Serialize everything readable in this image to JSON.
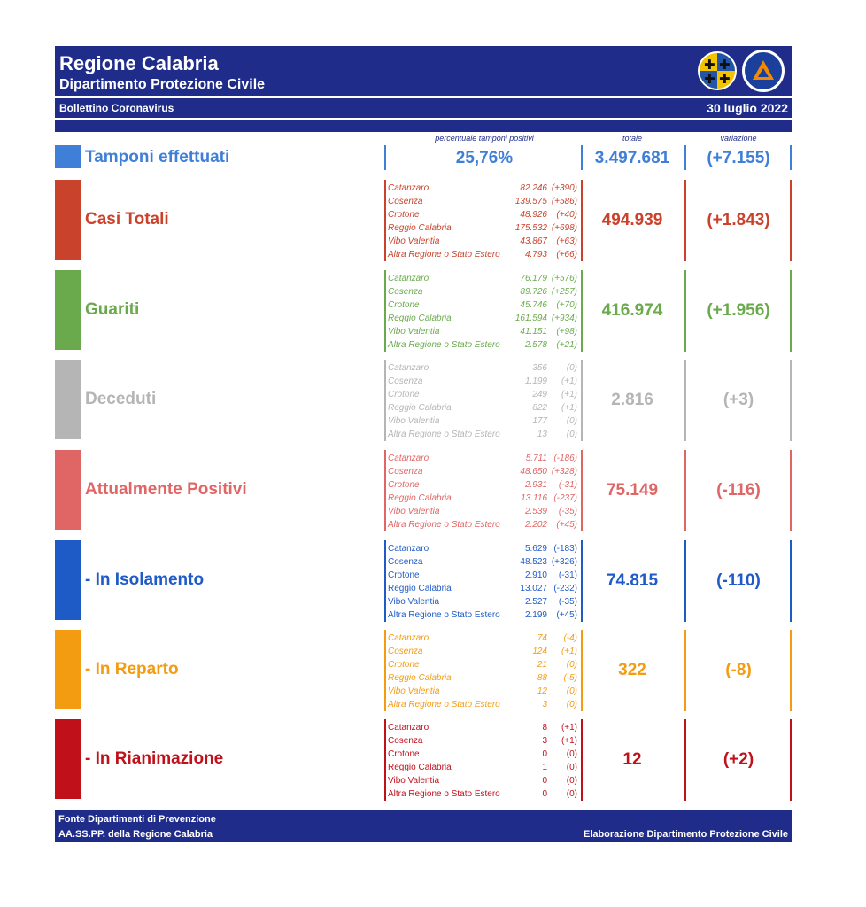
{
  "header": {
    "title": "Regione Calabria",
    "subtitle": "Dipartimento Protezione Civile",
    "bulletin": "Bollettino Coronavirus",
    "date": "30 luglio 2022"
  },
  "columns": {
    "pct_label": "percentuale tamponi positivi",
    "total_label": "totale",
    "var_label": "variazione"
  },
  "tamponi": {
    "label": "Tamponi effettuati",
    "pct": "25,76%",
    "total": "3.497.681",
    "variation": "(+7.155)",
    "color": "#3f7fd8"
  },
  "rows": [
    {
      "label": "Casi Totali",
      "total": "494.939",
      "variation": "(+1.843)",
      "color": "#c9432c",
      "provinces": [
        {
          "name": "Catanzaro",
          "value": "82.246",
          "delta": "(+390)"
        },
        {
          "name": "Cosenza",
          "value": "139.575",
          "delta": "(+586)"
        },
        {
          "name": "Crotone",
          "value": "48.926",
          "delta": "(+40)"
        },
        {
          "name": "Reggio Calabria",
          "value": "175.532",
          "delta": "(+698)"
        },
        {
          "name": "Vibo Valentia",
          "value": "43.867",
          "delta": "(+63)"
        },
        {
          "name": "Altra Regione o Stato Estero",
          "value": "4.793",
          "delta": "(+66)"
        }
      ]
    },
    {
      "label": "Guariti",
      "total": "416.974",
      "variation": "(+1.956)",
      "color": "#6aaa4c",
      "provinces": [
        {
          "name": "Catanzaro",
          "value": "76.179",
          "delta": "(+576)"
        },
        {
          "name": "Cosenza",
          "value": "89.726",
          "delta": "(+257)"
        },
        {
          "name": "Crotone",
          "value": "45.746",
          "delta": "(+70)"
        },
        {
          "name": "Reggio Calabria",
          "value": "161.594",
          "delta": "(+934)"
        },
        {
          "name": "Vibo Valentia",
          "value": "41.151",
          "delta": "(+98)"
        },
        {
          "name": "Altra Regione o Stato Estero",
          "value": "2.578",
          "delta": "(+21)"
        }
      ]
    },
    {
      "label": "Deceduti",
      "total": "2.816",
      "variation": "(+3)",
      "color": "#b5b5b5",
      "provinces": [
        {
          "name": "Catanzaro",
          "value": "356",
          "delta": "(0)"
        },
        {
          "name": "Cosenza",
          "value": "1.199",
          "delta": "(+1)"
        },
        {
          "name": "Crotone",
          "value": "249",
          "delta": "(+1)"
        },
        {
          "name": "Reggio Calabria",
          "value": "822",
          "delta": "(+1)"
        },
        {
          "name": "Vibo Valentia",
          "value": "177",
          "delta": "(0)"
        },
        {
          "name": "Altra Regione o Stato Estero",
          "value": "13",
          "delta": "(0)"
        }
      ]
    },
    {
      "label": "Attualmente Positivi",
      "total": "75.149",
      "variation": "(-116)",
      "color": "#e06565",
      "provinces": [
        {
          "name": "Catanzaro",
          "value": "5.711",
          "delta": "(-186)"
        },
        {
          "name": "Cosenza",
          "value": "48.650",
          "delta": "(+328)"
        },
        {
          "name": "Crotone",
          "value": "2.931",
          "delta": "(-31)"
        },
        {
          "name": "Reggio Calabria",
          "value": "13.116",
          "delta": "(-237)"
        },
        {
          "name": "Vibo Valentia",
          "value": "2.539",
          "delta": "(-35)"
        },
        {
          "name": "Altra Regione o Stato Estero",
          "value": "2.202",
          "delta": "(+45)"
        }
      ]
    },
    {
      "label": " - In Isolamento",
      "total": "74.815",
      "variation": "(-110)",
      "color": "#1f5bc7",
      "provinces": [
        {
          "name": "Catanzaro",
          "value": "5.629",
          "delta": "(-183)"
        },
        {
          "name": "Cosenza",
          "value": "48.523",
          "delta": "(+326)"
        },
        {
          "name": "Crotone",
          "value": "2.910",
          "delta": "(-31)"
        },
        {
          "name": "Reggio Calabria",
          "value": "13.027",
          "delta": "(-232)"
        },
        {
          "name": "Vibo Valentia",
          "value": "2.527",
          "delta": "(-35)"
        },
        {
          "name": "Altra Regione o Stato Estero",
          "value": "2.199",
          "delta": "(+45)"
        }
      ]
    },
    {
      "label": " - In Reparto",
      "total": "322",
      "variation": "(-8)",
      "color": "#f39c12",
      "provinces": [
        {
          "name": "Catanzaro",
          "value": "74",
          "delta": "(-4)"
        },
        {
          "name": "Cosenza",
          "value": "124",
          "delta": "(+1)"
        },
        {
          "name": "Crotone",
          "value": "21",
          "delta": "(0)"
        },
        {
          "name": "Reggio Calabria",
          "value": "88",
          "delta": "(-5)"
        },
        {
          "name": "Vibo Valentia",
          "value": "12",
          "delta": "(0)"
        },
        {
          "name": "Altra Regione o Stato Estero",
          "value": "3",
          "delta": "(0)"
        }
      ]
    },
    {
      "label": " - In Rianimazione",
      "total": "12",
      "variation": "(+2)",
      "color": "#c0101a",
      "provinces": [
        {
          "name": "Catanzaro",
          "value": "8",
          "delta": "(+1)"
        },
        {
          "name": "Cosenza",
          "value": "3",
          "delta": "(+1)"
        },
        {
          "name": "Crotone",
          "value": "0",
          "delta": "(0)"
        },
        {
          "name": "Reggio Calabria",
          "value": "1",
          "delta": "(0)"
        },
        {
          "name": "Vibo Valentia",
          "value": "0",
          "delta": "(0)"
        },
        {
          "name": "Altra Regione o Stato Estero",
          "value": "0",
          "delta": "(0)"
        }
      ]
    }
  ],
  "footer": {
    "source_line1": "Fonte Dipartimenti di Prevenzione",
    "source_line2": "AA.SS.PP.  della Regione Calabria",
    "credit": "Elaborazione Dipartimento Protezione Civile"
  }
}
